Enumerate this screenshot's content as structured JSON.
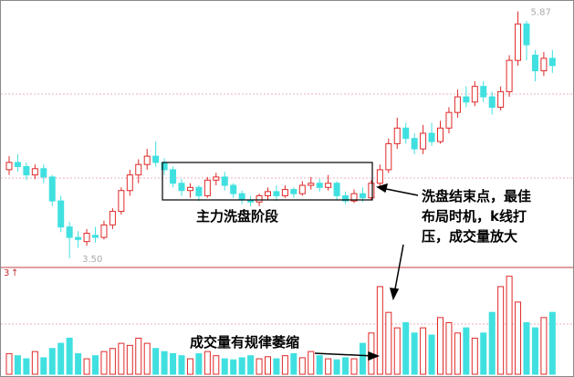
{
  "chart_data": {
    "type": "candlestick",
    "ylim": [
      3.42,
      5.98
    ],
    "volume_ylim": [
      0,
      100
    ],
    "up_color": "#e02828",
    "down_color": "#40e0e0",
    "low_label": {
      "value": 3.5,
      "label": "3.50"
    },
    "high_label": {
      "value": 5.87,
      "label": "5.87"
    },
    "volume_label": "3",
    "annotations": {
      "wash_phase": "主力洗盘阶段",
      "wash_end": [
        "洗盘结束点，最佳",
        "布局时机，k线打",
        "压，成交量放大"
      ],
      "volume_shrink": "成交量有规律萎缩"
    },
    "open": [
      4.35,
      4.42,
      4.38,
      4.3,
      4.36,
      4.28,
      4.05,
      3.8,
      3.7,
      3.66,
      3.72,
      3.7,
      3.82,
      3.95,
      4.15,
      4.3,
      4.4,
      4.48,
      4.42,
      4.35,
      4.22,
      4.15,
      4.18,
      4.1,
      4.25,
      4.28,
      4.2,
      4.12,
      4.06,
      4.04,
      4.1,
      4.14,
      4.1,
      4.16,
      4.12,
      4.2,
      4.22,
      4.18,
      4.22,
      4.1,
      4.05,
      4.12,
      4.08,
      4.22,
      4.35,
      4.6,
      4.75,
      4.65,
      4.55,
      4.7,
      4.62,
      4.75,
      4.9,
      5.05,
      5.0,
      5.15,
      5.05,
      4.95,
      5.1,
      5.4,
      5.75,
      5.45,
      5.3,
      5.42
    ],
    "high": [
      4.48,
      4.5,
      4.42,
      4.4,
      4.4,
      4.3,
      4.1,
      3.85,
      3.76,
      3.78,
      3.8,
      3.86,
      3.98,
      4.18,
      4.35,
      4.45,
      4.55,
      4.62,
      4.46,
      4.38,
      4.26,
      4.22,
      4.2,
      4.28,
      4.32,
      4.33,
      4.22,
      4.15,
      4.1,
      4.12,
      4.18,
      4.2,
      4.2,
      4.18,
      4.24,
      4.28,
      4.26,
      4.3,
      4.24,
      4.14,
      4.16,
      4.18,
      4.25,
      4.4,
      4.65,
      4.85,
      4.8,
      4.7,
      4.78,
      4.8,
      4.82,
      4.95,
      5.12,
      5.15,
      5.2,
      5.2,
      5.1,
      5.15,
      5.45,
      5.87,
      5.78,
      5.5,
      5.48,
      5.5
    ],
    "low": [
      4.3,
      4.33,
      4.25,
      4.26,
      4.22,
      4.0,
      3.75,
      3.5,
      3.6,
      3.62,
      3.65,
      3.68,
      3.78,
      3.92,
      4.1,
      4.22,
      4.35,
      4.38,
      4.3,
      4.18,
      4.1,
      4.08,
      4.05,
      4.08,
      4.2,
      4.15,
      4.08,
      4.02,
      4.0,
      4.0,
      4.06,
      4.05,
      4.08,
      4.08,
      4.1,
      4.16,
      4.14,
      4.15,
      4.06,
      4.02,
      4.03,
      4.04,
      4.06,
      4.18,
      4.32,
      4.55,
      4.6,
      4.5,
      4.5,
      4.58,
      4.6,
      4.7,
      4.85,
      4.95,
      4.96,
      5.0,
      4.88,
      4.92,
      5.05,
      5.35,
      5.4,
      5.2,
      5.25,
      5.28
    ],
    "close": [
      4.42,
      4.38,
      4.3,
      4.36,
      4.28,
      4.05,
      3.8,
      3.7,
      3.68,
      3.74,
      3.7,
      3.82,
      3.95,
      4.15,
      4.3,
      4.4,
      4.48,
      4.42,
      4.35,
      4.22,
      4.15,
      4.18,
      4.1,
      4.25,
      4.28,
      4.2,
      4.12,
      4.06,
      4.04,
      4.1,
      4.14,
      4.1,
      4.16,
      4.12,
      4.2,
      4.22,
      4.18,
      4.22,
      4.1,
      4.05,
      4.12,
      4.08,
      4.22,
      4.35,
      4.6,
      4.75,
      4.65,
      4.55,
      4.7,
      4.62,
      4.75,
      4.9,
      5.05,
      5.0,
      5.15,
      5.05,
      4.95,
      5.1,
      5.4,
      5.75,
      5.55,
      5.3,
      5.42,
      5.35
    ],
    "volume": [
      20,
      18,
      15,
      22,
      16,
      25,
      30,
      35,
      20,
      15,
      18,
      22,
      25,
      30,
      28,
      35,
      30,
      25,
      22,
      20,
      18,
      15,
      20,
      22,
      18,
      15,
      14,
      16,
      18,
      15,
      17,
      15,
      18,
      20,
      16,
      22,
      18,
      15,
      14,
      16,
      15,
      30,
      40,
      85,
      60,
      45,
      50,
      40,
      45,
      38,
      55,
      50,
      40,
      45,
      35,
      40,
      60,
      85,
      95,
      70,
      50,
      45,
      55,
      60
    ]
  }
}
